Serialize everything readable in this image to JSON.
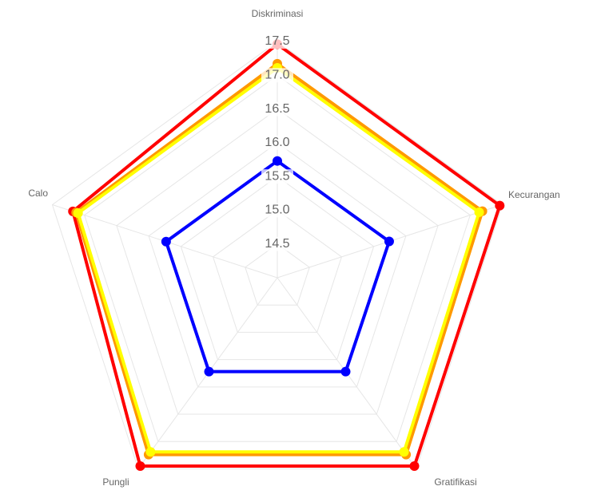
{
  "chart_data": {
    "type": "radar",
    "categories": [
      "Diskriminasi",
      "Kecurangan",
      "Gratifikasi",
      "Pungli",
      "Calo"
    ],
    "ylim": [
      14,
      17.5
    ],
    "yticks": [
      14.5,
      15.0,
      15.5,
      16.0,
      16.5,
      17.0,
      17.5
    ],
    "grid": true,
    "series": [
      {
        "color": "#ff0000",
        "values": [
          17.46,
          17.46,
          17.45,
          17.45,
          17.18
        ]
      },
      {
        "color": "#ff9900",
        "values": [
          17.17,
          17.19,
          17.24,
          17.24,
          17.13
        ]
      },
      {
        "color": "#ffff00",
        "values": [
          17.11,
          17.14,
          17.19,
          17.19,
          17.1
        ]
      },
      {
        "color": "#0000ff",
        "values": [
          15.73,
          15.74,
          15.72,
          15.72,
          15.73
        ]
      }
    ]
  }
}
